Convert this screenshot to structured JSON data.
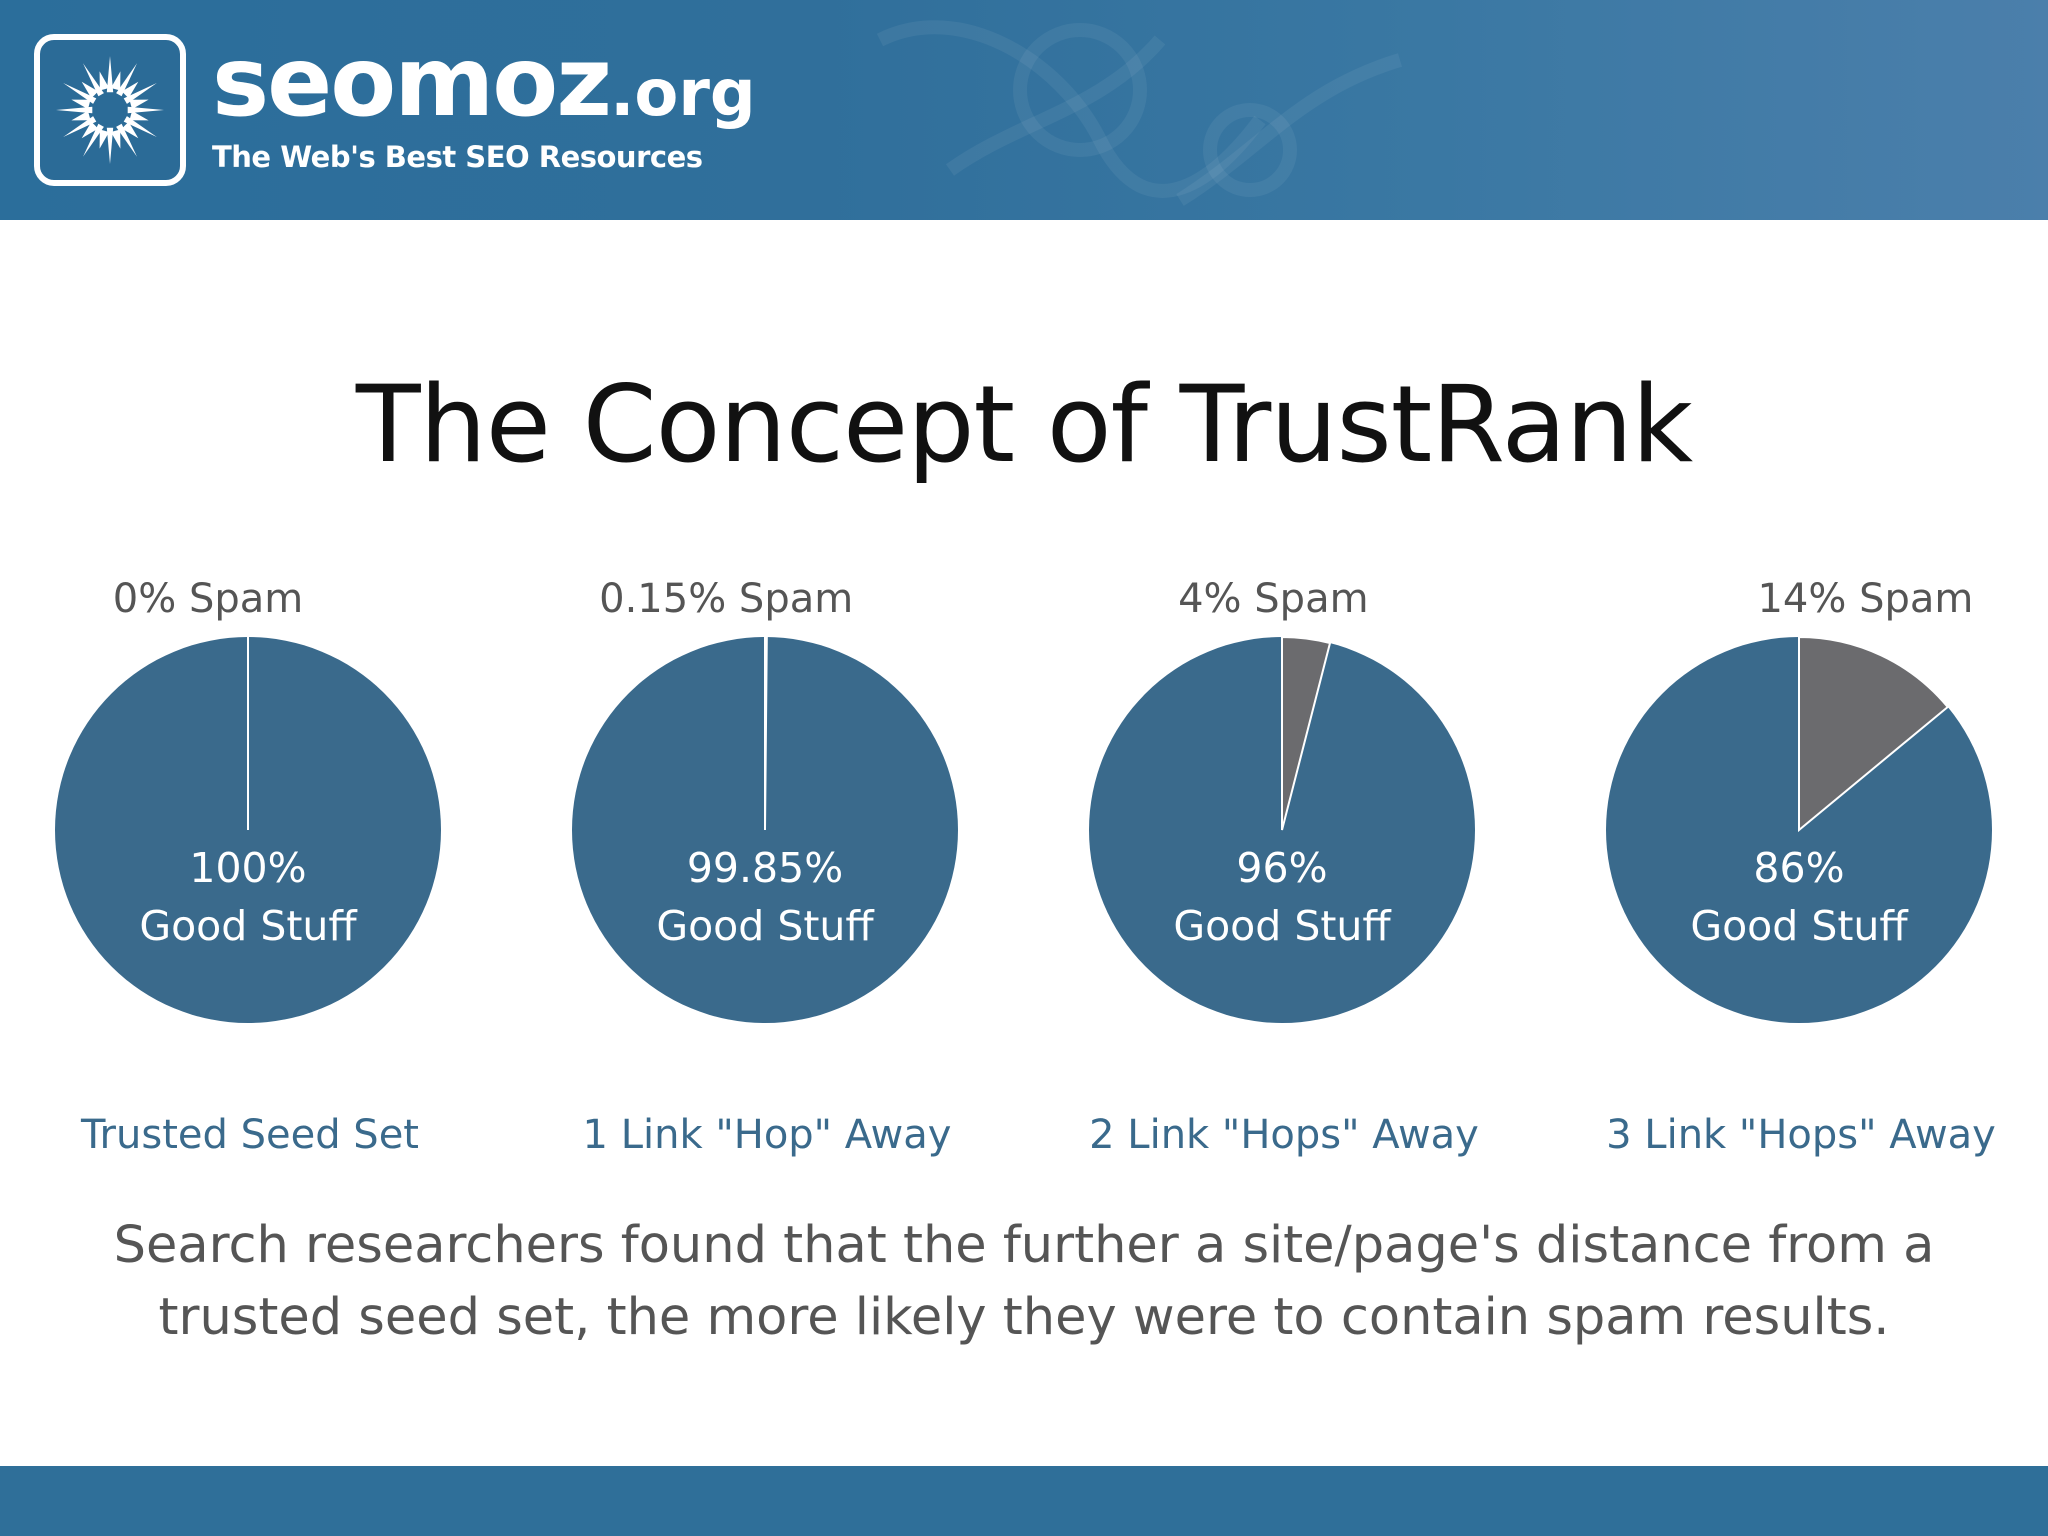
{
  "header": {
    "brand_name": "seomoz",
    "brand_tld": ".org",
    "tagline": "The Web's Best SEO Resources",
    "logo_icon": "sunburst-logo-icon"
  },
  "title": "The Concept of TrustRank",
  "chart_data": [
    {
      "type": "pie",
      "spam_label": "0% Spam",
      "good_percent_label": "100%",
      "good_label": "Good Stuff",
      "caption": "Trusted Seed Set",
      "slices": [
        {
          "name": "Spam",
          "value": 0
        },
        {
          "name": "Good Stuff",
          "value": 100
        }
      ]
    },
    {
      "type": "pie",
      "spam_label": "0.15% Spam",
      "good_percent_label": "99.85%",
      "good_label": "Good Stuff",
      "caption": "1 Link \"Hop\" Away",
      "slices": [
        {
          "name": "Spam",
          "value": 0.15
        },
        {
          "name": "Good Stuff",
          "value": 99.85
        }
      ]
    },
    {
      "type": "pie",
      "spam_label": "4% Spam",
      "good_percent_label": "96%",
      "good_label": "Good Stuff",
      "caption": "2 Link \"Hops\" Away",
      "slices": [
        {
          "name": "Spam",
          "value": 4
        },
        {
          "name": "Good Stuff",
          "value": 96
        }
      ]
    },
    {
      "type": "pie",
      "spam_label": "14% Spam",
      "good_percent_label": "86%",
      "good_label": "Good Stuff",
      "caption": "3 Link \"Hops\" Away",
      "slices": [
        {
          "name": "Spam",
          "value": 14
        },
        {
          "name": "Good Stuff",
          "value": 86
        }
      ]
    }
  ],
  "colors": {
    "good": "#3a6a8c",
    "spam": "#6b6b6e",
    "caption": "#3a6a8c",
    "spam_label": "#555555"
  },
  "caption": {
    "line1": "Search researchers found that the further a site/page's distance from a",
    "line2": "trusted seed set, the more likely they were to contain spam results."
  }
}
